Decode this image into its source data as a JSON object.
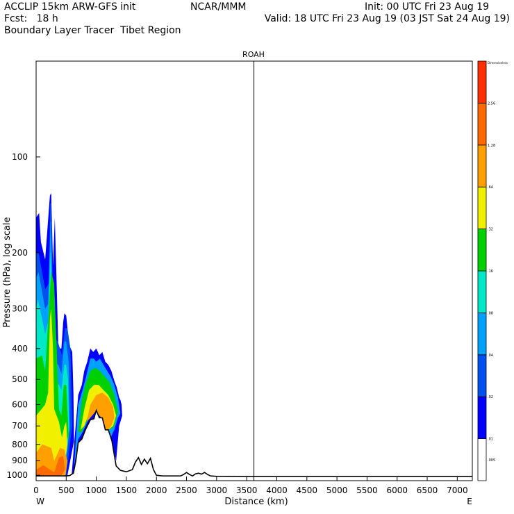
{
  "header": {
    "model": "ACCLIP 15km ARW-GFS init",
    "org": "NCAR/MMM",
    "init": "Init: 00 UTC Fri 23 Aug 19",
    "fcst": "Fcst:   18 h",
    "valid": "Valid: 18 UTC Fri 23 Aug 19 (03 JST Sat 24 Aug 19)",
    "field": "Boundary Layer Tracer  Tibet Region"
  },
  "chart_data": {
    "type": "heatmap",
    "title": "ROAH",
    "xlabel": "Distance (km)",
    "ylabel": "Pressure (hPa), log scale",
    "x_start_label": "W",
    "x_end_label": "E",
    "xlim": [
      0,
      7250
    ],
    "ylim": [
      1040,
      50
    ],
    "y_scale": "log",
    "x_ticks": [
      "0",
      "500",
      "1000",
      "1500",
      "2000",
      "2500",
      "3000",
      "3500",
      "4000",
      "4500",
      "5000",
      "5500",
      "6000",
      "6500",
      "7000"
    ],
    "y_ticks": [
      "100",
      "200",
      "300",
      "400",
      "500",
      "600",
      "700",
      "800",
      "900",
      "1000"
    ],
    "marker_line_x": 3620,
    "colorbar": {
      "labels": [
        ".005",
        ".01",
        ".02",
        ".04",
        ".08",
        ".16",
        ".32",
        ".64",
        "1.28",
        "2.56",
        "Dimensionless"
      ],
      "colors": [
        "#ffffff",
        "#0000ff",
        "#0050f0",
        "#00a0ff",
        "#00e8c8",
        "#00d000",
        "#f0f000",
        "#ffa000",
        "#ff6a00",
        "#ff3000"
      ]
    },
    "terrain_surface": {
      "distance_km": [
        0,
        400,
        500,
        560,
        620,
        660,
        700,
        760,
        820,
        900,
        960,
        1000,
        1050,
        1100,
        1150,
        1200,
        1260,
        1330,
        1400,
        1500,
        1600,
        1650,
        1700,
        1750,
        1800,
        1850,
        1900,
        1950,
        2000,
        2100,
        2200,
        2300,
        2400,
        2450,
        2500,
        2550,
        2600,
        2650,
        2700,
        2750,
        2800,
        2850,
        2900,
        3000,
        3600,
        4600,
        5000,
        6000,
        7250
      ],
      "pressure_hpa": [
        1005,
        1005,
        1005,
        1002,
        985,
        900,
        790,
        770,
        720,
        670,
        665,
        625,
        660,
        660,
        720,
        720,
        780,
        935,
        965,
        975,
        960,
        910,
        880,
        925,
        890,
        920,
        885,
        960,
        1000,
        1005,
        1005,
        1005,
        1005,
        995,
        980,
        995,
        1005,
        990,
        985,
        992,
        980,
        995,
        1005,
        1008,
        1010,
        1010,
        1010,
        1010,
        1010
      ]
    },
    "tracer_plumes": [
      {
        "x": [
          0,
          50,
          80,
          150,
          230,
          250,
          280,
          310,
          330,
          370,
          420,
          450,
          470,
          500,
          550,
          600,
          620,
          630,
          520,
          480,
          380,
          300,
          250,
          210,
          180,
          150,
          120,
          90,
          40,
          0
        ],
        "p": [
          155,
          150,
          185,
          210,
          132,
          130,
          220,
          155,
          210,
          400,
          400,
          330,
          310,
          315,
          390,
          410,
          550,
          780,
          1002,
          1003,
          1003,
          1003,
          1003,
          1003,
          1003,
          1003,
          1003,
          1003,
          1003,
          1003
        ],
        "level": 1
      },
      {
        "x": [
          0,
          40,
          150,
          210,
          235,
          250,
          290,
          360,
          430,
          480,
          520,
          570,
          600,
          500,
          300,
          200,
          100,
          0
        ],
        "p": [
          200,
          200,
          260,
          250,
          140,
          140,
          370,
          380,
          420,
          345,
          345,
          400,
          700,
          1002,
          1002,
          1002,
          1002,
          1002
        ],
        "level": 2
      },
      {
        "x": [
          0,
          40,
          150,
          200,
          240,
          250,
          280,
          370,
          420,
          470,
          500,
          540,
          560,
          480,
          300,
          0
        ],
        "p": [
          240,
          230,
          300,
          290,
          160,
          160,
          440,
          450,
          480,
          380,
          380,
          440,
          700,
          1002,
          1002,
          1002
        ],
        "level": 3
      },
      {
        "x": [
          0,
          30,
          150,
          200,
          240,
          250,
          270,
          380,
          420,
          470,
          500,
          530,
          550,
          460,
          300,
          0
        ],
        "p": [
          300,
          280,
          360,
          330,
          200,
          200,
          500,
          520,
          540,
          450,
          450,
          500,
          720,
          1002,
          1002,
          1002
        ],
        "level": 4
      },
      {
        "x": [
          0,
          100,
          150,
          250,
          300,
          380,
          420,
          460,
          500,
          520,
          540,
          300,
          0
        ],
        "p": [
          430,
          420,
          470,
          230,
          250,
          620,
          650,
          520,
          520,
          620,
          750,
          1002,
          1002
        ],
        "level": 5
      },
      {
        "x": [
          0,
          150,
          200,
          230,
          250,
          280,
          300,
          380,
          430,
          470,
          500,
          520,
          450,
          300,
          0
        ],
        "p": [
          650,
          600,
          550,
          320,
          300,
          400,
          620,
          680,
          760,
          700,
          680,
          800,
          1002,
          1002,
          1002
        ],
        "level": 6
      },
      {
        "x": [
          0,
          100,
          250,
          300,
          400,
          470,
          520,
          490,
          300,
          0
        ],
        "p": [
          850,
          800,
          820,
          900,
          820,
          830,
          900,
          1002,
          1002,
          1002
        ],
        "level": 7
      },
      {
        "x": [
          0,
          120,
          300,
          380,
          450,
          480,
          420,
          100,
          0
        ],
        "p": [
          960,
          930,
          980,
          880,
          870,
          960,
          1002,
          1002,
          1002
        ],
        "level": 8
      },
      {
        "x": [
          590,
          620,
          700,
          760,
          800,
          850,
          900,
          950,
          1000,
          1050,
          1100,
          1150,
          1200,
          1250,
          1300,
          1340,
          1380,
          1400,
          1420,
          1430,
          1380,
          1330,
          1260,
          1200,
          1150,
          1100,
          1050,
          1000,
          960,
          900,
          820,
          760,
          700,
          660,
          620
        ],
        "p": [
          1000,
          850,
          560,
          520,
          470,
          440,
          400,
          410,
          400,
          420,
          410,
          440,
          450,
          470,
          505,
          530,
          570,
          580,
          600,
          650,
          700,
          900,
          780,
          720,
          720,
          660,
          660,
          625,
          665,
          670,
          720,
          770,
          790,
          900,
          985
        ],
        "level": 1
      },
      {
        "x": [
          630,
          700,
          760,
          820,
          900,
          960,
          1000,
          1060,
          1120,
          1180,
          1240,
          1300,
          1360,
          1400,
          1360,
          1300,
          1240,
          1180,
          1120,
          1060,
          1000,
          960,
          900,
          820,
          760,
          700,
          660
        ],
        "p": [
          940,
          600,
          550,
          500,
          430,
          430,
          440,
          430,
          450,
          470,
          490,
          520,
          570,
          640,
          660,
          720,
          760,
          700,
          680,
          640,
          610,
          640,
          650,
          700,
          740,
          770,
          870
        ],
        "level": 3
      },
      {
        "x": [
          700,
          760,
          820,
          900,
          980,
          1060,
          1140,
          1220,
          1300,
          1360,
          1300,
          1220,
          1140,
          1060,
          980,
          900,
          820,
          760
        ],
        "p": [
          730,
          580,
          520,
          470,
          460,
          470,
          490,
          510,
          560,
          630,
          700,
          720,
          680,
          640,
          610,
          640,
          690,
          730
        ],
        "level": 5
      },
      {
        "x": [
          740,
          800,
          880,
          960,
          1040,
          1120,
          1200,
          1280,
          1330,
          1280,
          1200,
          1120,
          1040,
          960,
          880,
          800
        ],
        "p": [
          720,
          620,
          540,
          520,
          520,
          540,
          560,
          600,
          650,
          700,
          720,
          680,
          640,
          610,
          640,
          700
        ],
        "level": 6
      },
      {
        "x": [
          840,
          900,
          1000,
          1100,
          1200,
          1280,
          1300,
          1250,
          1200,
          1150,
          1100,
          1050,
          1000,
          960,
          900
        ],
        "p": [
          680,
          600,
          560,
          550,
          570,
          610,
          660,
          700,
          720,
          720,
          660,
          650,
          625,
          640,
          660
        ],
        "level": 7
      }
    ]
  }
}
